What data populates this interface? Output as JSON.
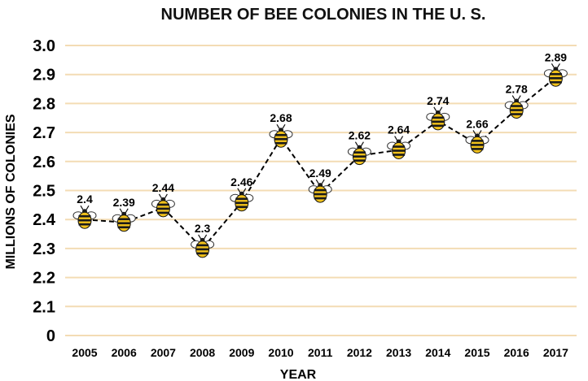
{
  "chart_data": {
    "type": "line",
    "title": "NUMBER OF BEE COLONIES IN THE U. S.",
    "xlabel": "YEAR",
    "ylabel": "MILLIONS OF COLONIES",
    "categories": [
      "2005",
      "2006",
      "2007",
      "2008",
      "2009",
      "2010",
      "2011",
      "2012",
      "2013",
      "2014",
      "2015",
      "2016",
      "2017"
    ],
    "series": [
      {
        "values": [
          2.4,
          2.39,
          2.44,
          2.3,
          2.46,
          2.68,
          2.49,
          2.62,
          2.64,
          2.74,
          2.66,
          2.78,
          2.89
        ]
      }
    ],
    "data_labels": [
      "2.4",
      "2.39",
      "2.44",
      "2.3",
      "2.46",
      "2.68",
      "2.49",
      "2.62",
      "2.64",
      "2.74",
      "2.66",
      "2.78",
      "2.89"
    ],
    "y_ticks": [
      "0",
      "2.1",
      "2.2",
      "2.3",
      "2.4",
      "2.5",
      "2.6",
      "2.7",
      "2.8",
      "2.9",
      "3.0"
    ],
    "y_tick_values": [
      2.0,
      2.1,
      2.2,
      2.3,
      2.4,
      2.5,
      2.6,
      2.7,
      2.8,
      2.9,
      3.0
    ],
    "ylim": [
      2.0,
      3.0
    ],
    "axis_break": "y-axis starts at 0 then jumps to 2.1",
    "grid": true,
    "line_style": "dashed",
    "marker": "bee-icon",
    "colors": {
      "grid": "#f3dcb4",
      "line": "#000000",
      "bee_body": "#f2c21b",
      "bee_stripe": "#1a1a1a"
    }
  }
}
